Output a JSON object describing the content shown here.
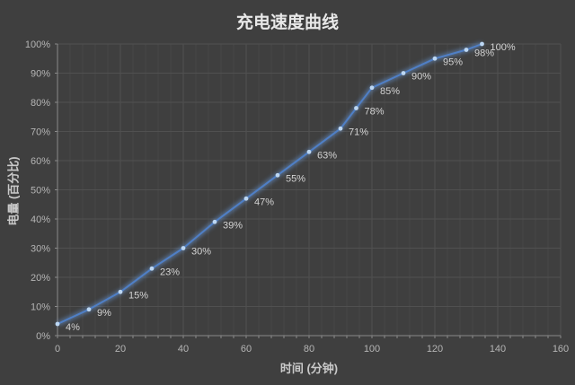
{
  "chart_data": {
    "type": "line",
    "title": "充电速度曲线",
    "xlabel": "时间 (分钟)",
    "ylabel": "电量 (百分比)",
    "x": [
      0,
      10,
      20,
      30,
      40,
      50,
      60,
      70,
      80,
      90,
      95,
      100,
      110,
      120,
      130,
      135
    ],
    "values": [
      4,
      9,
      15,
      23,
      30,
      39,
      47,
      55,
      63,
      71,
      78,
      85,
      90,
      95,
      98,
      100
    ],
    "point_labels": [
      "4%",
      "9%",
      "15%",
      "23%",
      "30%",
      "39%",
      "47%",
      "55%",
      "63%",
      "71%",
      "78%",
      "85%",
      "90%",
      "95%",
      "98%",
      "100%"
    ],
    "xlim": [
      0,
      160
    ],
    "ylim": [
      0,
      100
    ],
    "x_ticks": [
      0,
      20,
      40,
      60,
      80,
      100,
      120,
      140,
      160
    ],
    "x_minor_tick_step": 4,
    "y_tick_labels": [
      "0%",
      "10%",
      "20%",
      "30%",
      "40%",
      "50%",
      "60%",
      "70%",
      "80%",
      "90%",
      "100%"
    ],
    "grid": true,
    "legend": "none"
  },
  "colors": {
    "background": "#3f3f3f",
    "line": "#4f7fc6",
    "line_glow": "#6ea3e8",
    "marker": "#bcd7f3",
    "grid_major": "#505050",
    "grid_minor": "#474747",
    "axis": "#8a8a8a",
    "title_text": "#e8e8e8",
    "axis_title_text": "#c9c9c9",
    "tick_label_text": "#b5b5b5",
    "data_label_text": "#d4d4d4"
  }
}
